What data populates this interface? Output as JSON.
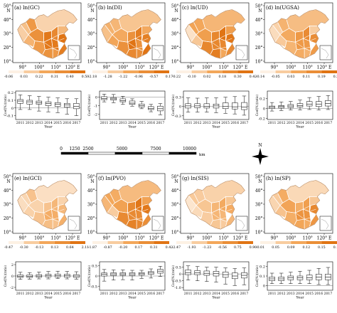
{
  "colors": {
    "low": "#fdf1e4",
    "mid": "#f3a75a",
    "high": "#e07414",
    "border": "#ffffff",
    "axis": "#000000",
    "zero_line": "#555555"
  },
  "map_axes": {
    "lon_labels": [
      "90°",
      "100°",
      "110°",
      "120° E"
    ],
    "lat_labels": [
      "50°",
      "40°",
      "30°",
      "20°",
      "10°"
    ],
    "north_label": "N"
  },
  "scale_bar": {
    "labels": [
      "0",
      "1250",
      "2500",
      "5000",
      "7500",
      "10000"
    ],
    "unit": "km"
  },
  "compass": {
    "label": "N"
  },
  "panels": [
    {
      "id": "a",
      "title": "(a) ln(GC)",
      "legend_labels": [
        "-0.06",
        "0.03",
        "0.22",
        "0.31",
        "0.40",
        "0.50"
      ],
      "intensity": "high",
      "box": {
        "ylabel": "Coef(%)(ratio)",
        "yticks": [
          "0.2",
          "0.1",
          "0",
          "-0.1"
        ],
        "ylim": [
          -0.15,
          0.22
        ],
        "years": [
          "2011",
          "2012",
          "2013",
          "2014",
          "2015",
          "2016",
          "2017"
        ],
        "xlabel": "Year",
        "data": [
          {
            "year": "2011",
            "min": -0.02,
            "q1": 0.06,
            "median": 0.09,
            "q3": 0.11,
            "max": 0.17
          },
          {
            "year": "2012",
            "min": -0.02,
            "q1": 0.05,
            "median": 0.08,
            "q3": 0.1,
            "max": 0.16
          },
          {
            "year": "2013",
            "min": -0.04,
            "q1": 0.05,
            "median": 0.07,
            "q3": 0.09,
            "max": 0.15
          },
          {
            "year": "2014",
            "min": -0.05,
            "q1": 0.03,
            "median": 0.06,
            "q3": 0.08,
            "max": 0.14
          },
          {
            "year": "2015",
            "min": -0.06,
            "q1": 0.02,
            "median": 0.05,
            "q3": 0.07,
            "max": 0.13
          },
          {
            "year": "2016",
            "min": -0.08,
            "q1": 0.01,
            "median": 0.04,
            "q3": 0.06,
            "max": 0.12
          },
          {
            "year": "2017",
            "min": -0.1,
            "q1": -0.01,
            "median": 0.02,
            "q3": 0.06,
            "max": 0.12
          }
        ]
      }
    },
    {
      "id": "b",
      "title": "(b) ln(DI)",
      "legend_labels": [
        "-2.18",
        "-1.28",
        "-1.22",
        "-0.96",
        "-0.57",
        "0.17"
      ],
      "intensity": "high",
      "box": {
        "ylabel": "Coef(%)(ratio)",
        "yticks": [
          "0",
          "-1",
          "-2"
        ],
        "ylim": [
          -2.6,
          0.7
        ],
        "years": [
          "2011",
          "2012",
          "2013",
          "2014",
          "2015",
          "2016",
          "2017"
        ],
        "xlabel": "Year",
        "data": [
          {
            "year": "2011",
            "min": -0.55,
            "q1": -0.3,
            "median": -0.15,
            "q3": 0.05,
            "max": 0.35
          },
          {
            "year": "2012",
            "min": -0.65,
            "q1": -0.35,
            "median": -0.2,
            "q3": -0.05,
            "max": 0.3
          },
          {
            "year": "2013",
            "min": -0.85,
            "q1": -0.55,
            "median": -0.4,
            "q3": -0.2,
            "max": 0.1
          },
          {
            "year": "2014",
            "min": -1.05,
            "q1": -0.85,
            "median": -0.7,
            "q3": -0.45,
            "max": -0.2
          },
          {
            "year": "2015",
            "min": -1.35,
            "q1": -1.15,
            "median": -1.0,
            "q3": -0.8,
            "max": -0.5
          },
          {
            "year": "2016",
            "min": -1.7,
            "q1": -1.45,
            "median": -1.3,
            "q3": -1.1,
            "max": -0.85
          },
          {
            "year": "2017",
            "min": -2.05,
            "q1": -1.6,
            "median": -1.35,
            "q3": -1.05,
            "max": -0.75
          }
        ]
      }
    },
    {
      "id": "c",
      "title": "(c) ln(UD)",
      "legend_labels": [
        "-0.22",
        "-0.10",
        "0.02",
        "0.18",
        "0.30",
        "0.42"
      ],
      "intensity": "high",
      "box": {
        "ylabel": "Coef(%)(ratio)",
        "yticks": [
          "0.3",
          "0",
          "-0.3"
        ],
        "ylim": [
          -0.42,
          0.5
        ],
        "years": [
          "2011",
          "2012",
          "2013",
          "2014",
          "2015",
          "2016",
          "2017"
        ],
        "xlabel": "Year",
        "data": [
          {
            "year": "2011",
            "min": -0.18,
            "q1": -0.05,
            "median": 0.02,
            "q3": 0.09,
            "max": 0.28
          },
          {
            "year": "2012",
            "min": -0.18,
            "q1": -0.04,
            "median": 0.02,
            "q3": 0.09,
            "max": 0.27
          },
          {
            "year": "2013",
            "min": -0.18,
            "q1": -0.05,
            "median": 0.01,
            "q3": 0.09,
            "max": 0.28
          },
          {
            "year": "2014",
            "min": -0.2,
            "q1": -0.05,
            "median": 0.02,
            "q3": 0.08,
            "max": 0.28
          },
          {
            "year": "2015",
            "min": -0.22,
            "q1": -0.07,
            "median": 0.0,
            "q3": 0.12,
            "max": 0.3
          },
          {
            "year": "2016",
            "min": -0.24,
            "q1": -0.08,
            "median": -0.01,
            "q3": 0.12,
            "max": 0.32
          },
          {
            "year": "2017",
            "min": -0.28,
            "q1": -0.1,
            "median": -0.02,
            "q3": 0.13,
            "max": 0.34
          }
        ]
      }
    },
    {
      "id": "d",
      "title": "(d) ln(UGSA)",
      "legend_labels": [
        "-0.14",
        "-0.05",
        "0.03",
        "0.11",
        "0.19",
        "0.30"
      ],
      "intensity": "medium",
      "box": {
        "ylabel": "Coef(%)(ratio)",
        "yticks": [
          "0.2",
          "0",
          "-0.2"
        ],
        "ylim": [
          -0.22,
          0.35
        ],
        "years": [
          "2011",
          "2012",
          "2013",
          "2014",
          "2015",
          "2016",
          "2017"
        ],
        "xlabel": "Year",
        "data": [
          {
            "year": "2011",
            "min": -0.05,
            "q1": 0.0,
            "median": 0.03,
            "q3": 0.05,
            "max": 0.12
          },
          {
            "year": "2012",
            "min": -0.04,
            "q1": 0.01,
            "median": 0.04,
            "q3": 0.06,
            "max": 0.13
          },
          {
            "year": "2013",
            "min": -0.03,
            "q1": 0.02,
            "median": 0.05,
            "q3": 0.08,
            "max": 0.14
          },
          {
            "year": "2014",
            "min": -0.03,
            "q1": 0.03,
            "median": 0.06,
            "q3": 0.1,
            "max": 0.17
          },
          {
            "year": "2015",
            "min": -0.02,
            "q1": 0.05,
            "median": 0.09,
            "q3": 0.14,
            "max": 0.22
          },
          {
            "year": "2016",
            "min": -0.03,
            "q1": 0.04,
            "median": 0.09,
            "q3": 0.14,
            "max": 0.24
          },
          {
            "year": "2017",
            "min": -0.02,
            "q1": 0.05,
            "median": 0.1,
            "q3": 0.16,
            "max": 0.26
          }
        ]
      }
    },
    {
      "id": "e",
      "title": "(e) ln(GCI)",
      "legend_labels": [
        "-0.47",
        "-0.30",
        "-0.13",
        "0.13",
        "0.64",
        "2.11"
      ],
      "intensity": "low",
      "box": {
        "ylabel": "Coef(%)(ratio)",
        "yticks": [
          "2",
          "0",
          "-2"
        ],
        "ylim": [
          -2.5,
          2.5
        ],
        "years": [
          "2011",
          "2012",
          "2013",
          "2014",
          "2015",
          "2016",
          "2017"
        ],
        "xlabel": "Year",
        "data": [
          {
            "year": "2011",
            "min": -0.6,
            "q1": -0.25,
            "median": -0.05,
            "q3": 0.2,
            "max": 0.65
          },
          {
            "year": "2012",
            "min": -0.55,
            "q1": -0.25,
            "median": -0.05,
            "q3": 0.2,
            "max": 0.6
          },
          {
            "year": "2013",
            "min": -0.5,
            "q1": -0.2,
            "median": 0.0,
            "q3": 0.25,
            "max": 0.7
          },
          {
            "year": "2014",
            "min": -0.5,
            "q1": -0.15,
            "median": 0.05,
            "q3": 0.3,
            "max": 0.8
          },
          {
            "year": "2015",
            "min": -0.45,
            "q1": -0.15,
            "median": 0.05,
            "q3": 0.35,
            "max": 0.85
          },
          {
            "year": "2016",
            "min": -0.5,
            "q1": -0.2,
            "median": 0.05,
            "q3": 0.3,
            "max": 0.8
          },
          {
            "year": "2017",
            "min": -0.55,
            "q1": -0.25,
            "median": 0.0,
            "q3": 0.25,
            "max": 0.75
          }
        ]
      }
    },
    {
      "id": "f",
      "title": "(f) ln(PVO)",
      "legend_labels": [
        "-1.87",
        "-0.87",
        "-0.20",
        "0.17",
        "0.31",
        "0.42"
      ],
      "intensity": "high",
      "box": {
        "ylabel": "Coef(%)(ratio)",
        "yticks": [
          "0.5",
          "0",
          "-0.5"
        ],
        "ylim": [
          -0.7,
          0.7
        ],
        "years": [
          "2011",
          "2012",
          "2013",
          "2014",
          "2015",
          "2016",
          "2017"
        ],
        "xlabel": "Year",
        "data": [
          {
            "year": "2011",
            "min": -0.25,
            "q1": 0.0,
            "median": 0.08,
            "q3": 0.15,
            "max": 0.32
          },
          {
            "year": "2012",
            "min": -0.2,
            "q1": 0.02,
            "median": 0.1,
            "q3": 0.16,
            "max": 0.3
          },
          {
            "year": "2013",
            "min": -0.18,
            "q1": 0.03,
            "median": 0.1,
            "q3": 0.16,
            "max": 0.3
          },
          {
            "year": "2014",
            "min": -0.2,
            "q1": 0.02,
            "median": 0.1,
            "q3": 0.16,
            "max": 0.28
          },
          {
            "year": "2015",
            "min": -0.12,
            "q1": 0.04,
            "median": 0.11,
            "q3": 0.17,
            "max": 0.28
          },
          {
            "year": "2016",
            "min": -0.1,
            "q1": 0.08,
            "median": 0.15,
            "q3": 0.22,
            "max": 0.35
          },
          {
            "year": "2017",
            "min": -0.02,
            "q1": 0.14,
            "median": 0.24,
            "q3": 0.33,
            "max": 0.48
          }
        ]
      }
    },
    {
      "id": "g",
      "title": "(g) ln(SIS)",
      "legend_labels": [
        "-2.47",
        "-1.93",
        "-1.23",
        "-0.56",
        "0.75",
        "0.90"
      ],
      "intensity": "low",
      "box": {
        "ylabel": "Coef(%)(ratio)",
        "yticks": [
          "0.5",
          "0",
          "-0.5",
          "-1.0"
        ],
        "ylim": [
          -1.2,
          0.9
        ],
        "years": [
          "2011",
          "2012",
          "2013",
          "2014",
          "2015",
          "2016",
          "2017"
        ],
        "xlabel": "Year",
        "data": [
          {
            "year": "2011",
            "min": -0.45,
            "q1": -0.05,
            "median": 0.1,
            "q3": 0.3,
            "max": 0.6
          },
          {
            "year": "2012",
            "min": -0.5,
            "q1": -0.05,
            "median": 0.08,
            "q3": 0.25,
            "max": 0.55
          },
          {
            "year": "2013",
            "min": -0.55,
            "q1": -0.1,
            "median": 0.05,
            "q3": 0.22,
            "max": 0.5
          },
          {
            "year": "2014",
            "min": -0.6,
            "q1": -0.15,
            "median": 0.02,
            "q3": 0.2,
            "max": 0.5
          },
          {
            "year": "2015",
            "min": -0.75,
            "q1": -0.25,
            "median": -0.05,
            "q3": 0.15,
            "max": 0.45
          },
          {
            "year": "2016",
            "min": -0.85,
            "q1": -0.35,
            "median": -0.15,
            "q3": 0.08,
            "max": 0.4
          },
          {
            "year": "2017",
            "min": -0.8,
            "q1": -0.3,
            "median": -0.1,
            "q3": 0.1,
            "max": 0.45
          }
        ]
      }
    },
    {
      "id": "h",
      "title": "(h) ln(SP)",
      "legend_labels": [
        "-0.01",
        "0.05",
        "0.09",
        "0.12",
        "0.15",
        "0.19"
      ],
      "intensity": "medium",
      "box": {
        "ylabel": "Coef(%)(ratio)",
        "yticks": [
          "0.2",
          "0.1",
          "0"
        ],
        "ylim": [
          -0.05,
          0.25
        ],
        "years": [
          "2011",
          "2012",
          "2013",
          "2014",
          "2015",
          "2016",
          "2017"
        ],
        "xlabel": "Year",
        "data": [
          {
            "year": "2011",
            "min": 0.02,
            "q1": 0.05,
            "median": 0.07,
            "q3": 0.09,
            "max": 0.13
          },
          {
            "year": "2012",
            "min": 0.02,
            "q1": 0.05,
            "median": 0.07,
            "q3": 0.09,
            "max": 0.13
          },
          {
            "year": "2013",
            "min": 0.02,
            "q1": 0.06,
            "median": 0.08,
            "q3": 0.1,
            "max": 0.14
          },
          {
            "year": "2014",
            "min": 0.02,
            "q1": 0.06,
            "median": 0.08,
            "q3": 0.1,
            "max": 0.15
          },
          {
            "year": "2015",
            "min": 0.02,
            "q1": 0.06,
            "median": 0.08,
            "q3": 0.11,
            "max": 0.16
          },
          {
            "year": "2016",
            "min": 0.01,
            "q1": 0.06,
            "median": 0.09,
            "q3": 0.12,
            "max": 0.18
          },
          {
            "year": "2017",
            "min": 0.01,
            "q1": 0.06,
            "median": 0.09,
            "q3": 0.12,
            "max": 0.19
          }
        ]
      }
    }
  ],
  "chart_data": [
    {
      "type": "box",
      "panel": "a",
      "title": "(a) ln(GC)",
      "xlabel": "Year",
      "ylabel": "Coef(%)(ratio)",
      "categories": [
        "2011",
        "2012",
        "2013",
        "2014",
        "2015",
        "2016",
        "2017"
      ]
    },
    {
      "type": "box",
      "panel": "b",
      "title": "(b) ln(DI)",
      "xlabel": "Year",
      "ylabel": "Coef(%)(ratio)",
      "categories": [
        "2011",
        "2012",
        "2013",
        "2014",
        "2015",
        "2016",
        "2017"
      ]
    },
    {
      "type": "box",
      "panel": "c",
      "title": "(c) ln(UD)",
      "xlabel": "Year",
      "ylabel": "Coef(%)(ratio)",
      "categories": [
        "2011",
        "2012",
        "2013",
        "2014",
        "2015",
        "2016",
        "2017"
      ]
    },
    {
      "type": "box",
      "panel": "d",
      "title": "(d) ln(UGSA)",
      "xlabel": "Year",
      "ylabel": "Coef(%)(ratio)",
      "categories": [
        "2011",
        "2012",
        "2013",
        "2014",
        "2015",
        "2016",
        "2017"
      ]
    },
    {
      "type": "box",
      "panel": "e",
      "title": "(e) ln(GCI)",
      "xlabel": "Year",
      "ylabel": "Coef(%)(ratio)",
      "categories": [
        "2011",
        "2012",
        "2013",
        "2014",
        "2015",
        "2016",
        "2017"
      ]
    },
    {
      "type": "box",
      "panel": "f",
      "title": "(f) ln(PVO)",
      "xlabel": "Year",
      "ylabel": "Coef(%)(ratio)",
      "categories": [
        "2011",
        "2012",
        "2013",
        "2014",
        "2015",
        "2016",
        "2017"
      ]
    },
    {
      "type": "box",
      "panel": "g",
      "title": "(g) ln(SIS)",
      "xlabel": "Year",
      "ylabel": "Coef(%)(ratio)",
      "categories": [
        "2011",
        "2012",
        "2013",
        "2014",
        "2015",
        "2016",
        "2017"
      ]
    },
    {
      "type": "box",
      "panel": "h",
      "title": "(h) ln(SP)",
      "xlabel": "Year",
      "ylabel": "Coef(%)(ratio)",
      "categories": [
        "2011",
        "2012",
        "2013",
        "2014",
        "2015",
        "2016",
        "2017"
      ]
    }
  ]
}
